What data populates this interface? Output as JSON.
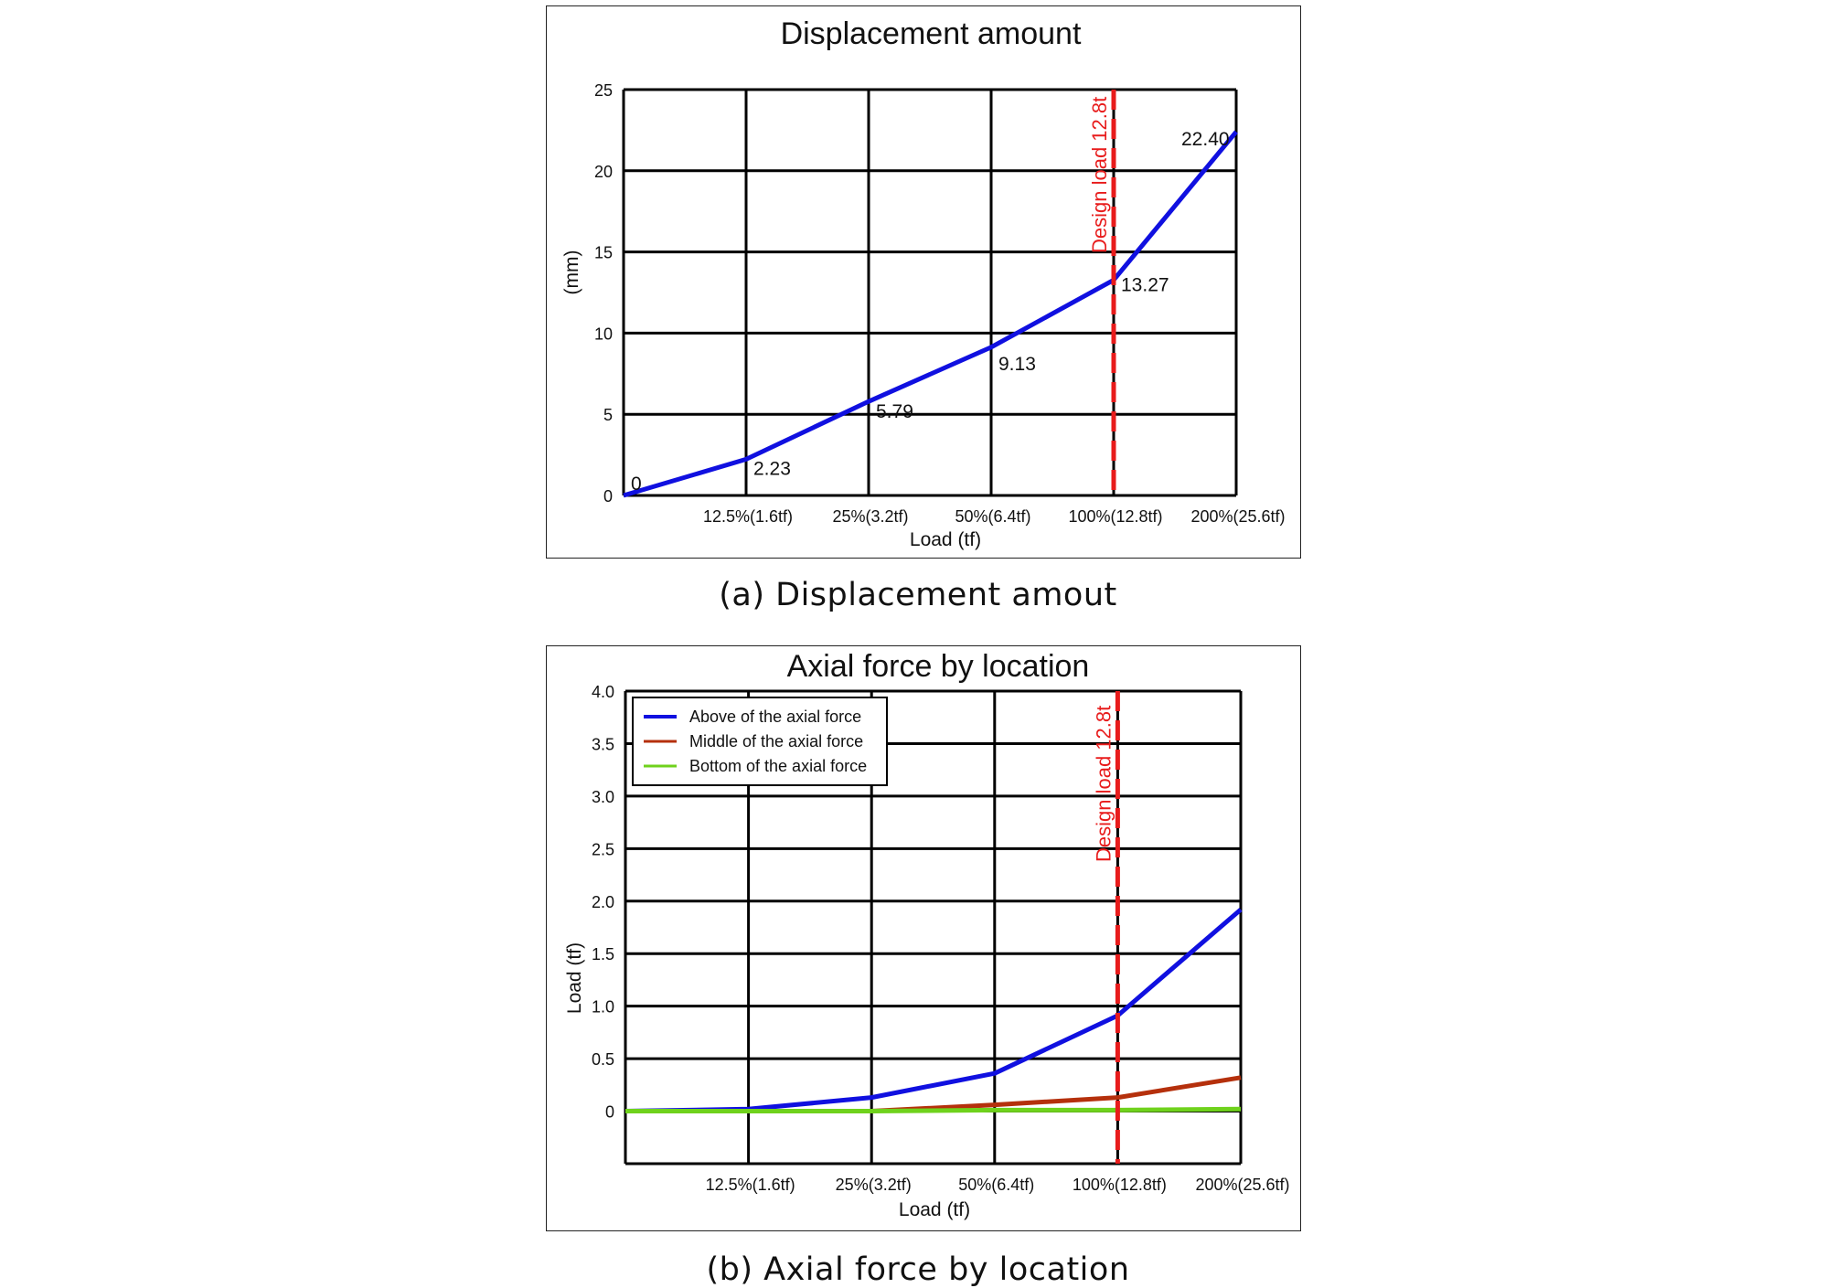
{
  "colors": {
    "blue": "#1010e0",
    "middle": "#b5300c",
    "bottom": "#6fd21c",
    "design": "#e81c1c"
  },
  "chart_data": [
    {
      "type": "line",
      "title": "Displacement amount",
      "xlabel": "Load (tf)",
      "ylabel": "(mm)",
      "ylim": [
        0,
        25
      ],
      "yticks": [
        "0",
        "5",
        "10",
        "15",
        "20",
        "25"
      ],
      "categories": [
        "",
        "12.5%(1.6tf)",
        "25%(3.2tf)",
        "50%(6.4tf)",
        "100%(12.8tf)",
        "200%(25.6tf)"
      ],
      "grid": true,
      "series": [
        {
          "name": "",
          "color": "blue",
          "values": [
            0,
            2.23,
            5.79,
            9.13,
            13.27,
            22.4
          ]
        }
      ],
      "data_labels": [
        "0",
        "2.23",
        "5.79",
        "9.13",
        "13.27",
        "22.40"
      ],
      "reference_line": {
        "label": "Design load 12.8t",
        "x_index": 4
      }
    },
    {
      "type": "line",
      "title": "Axial force by location",
      "xlabel": "Load (tf)",
      "ylabel": "Load (tf)",
      "ylim": [
        -0.5,
        4.0
      ],
      "yticks": [
        "0",
        "0.5",
        "1.0",
        "1.5",
        "2.0",
        "2.5",
        "3.0",
        "3.5",
        "4.0"
      ],
      "categories": [
        "",
        "12.5%(1.6tf)",
        "25%(3.2tf)",
        "50%(6.4tf)",
        "100%(12.8tf)",
        "200%(25.6tf)"
      ],
      "grid": true,
      "legend_position": "top-left",
      "series": [
        {
          "name": "Above of the axial force",
          "color": "blue",
          "values": [
            0,
            0.02,
            0.13,
            0.36,
            0.91,
            1.92
          ]
        },
        {
          "name": "Middle of the axial force",
          "color": "middle",
          "values": [
            0,
            0,
            0,
            0.06,
            0.13,
            0.32
          ]
        },
        {
          "name": "Bottom of the axial force",
          "color": "bottom",
          "values": [
            0,
            0,
            0,
            0.01,
            0.01,
            0.02
          ]
        }
      ],
      "reference_line": {
        "label": "Design load 12.8t",
        "x_index": 4
      }
    }
  ],
  "captions": {
    "a": "(a) Displacement amout",
    "b": "(b) Axial force by location"
  }
}
